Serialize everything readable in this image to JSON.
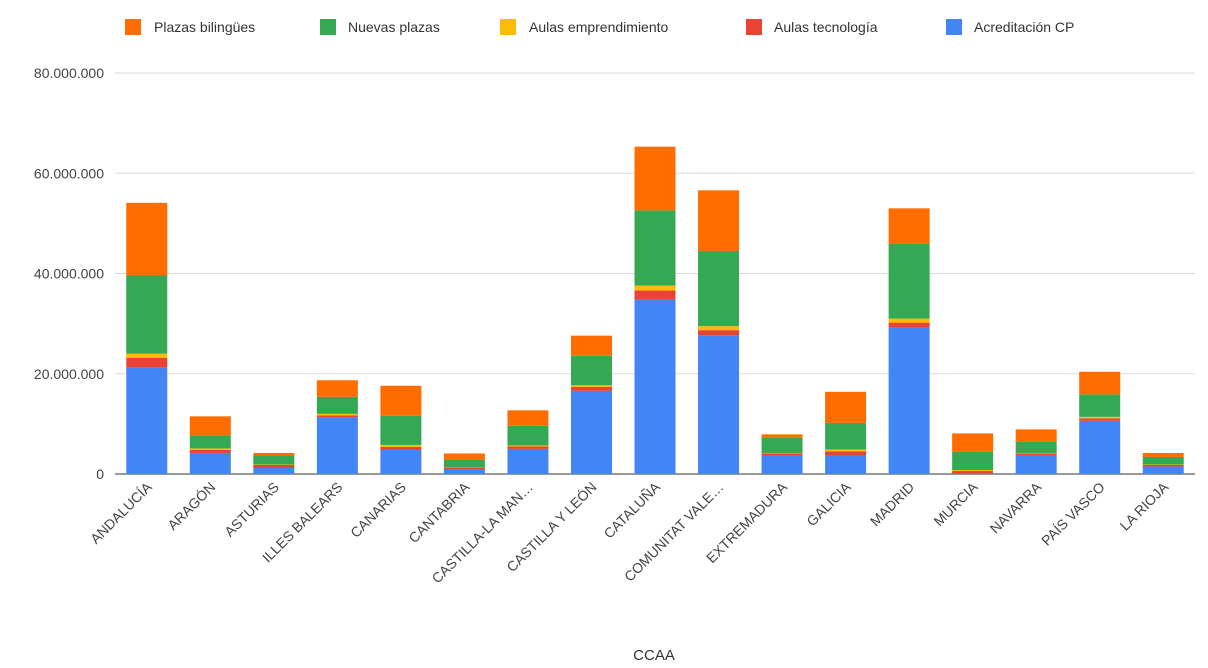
{
  "chart_data": {
    "type": "bar",
    "stacked": true,
    "xlabel": "CCAA",
    "ylabel": "",
    "ylim": [
      0,
      80000000
    ],
    "y_ticks": [
      0,
      20000000,
      40000000,
      60000000,
      80000000
    ],
    "y_tick_labels": [
      "0",
      "20.000.000",
      "40.000.000",
      "60.000.000",
      "80.000.000"
    ],
    "grid": true,
    "legend_position": "top",
    "categories": [
      "ANDALUCÍA",
      "ARAGÓN",
      "ASTURIAS",
      "ILLES BALEARS",
      "CANARIAS",
      "CANTABRIA",
      "CASTILLA-LA MAN…",
      "CASTILLA Y LEÓN",
      "CATALUÑA",
      "COMUNITAT VALE…",
      "EXTREMADURA",
      "GALICIA",
      "MADRID",
      "MURCIA",
      "NAVARRA",
      "PAÍS VASCO",
      "LA RIOJA"
    ],
    "legend_order": [
      "Plazas bilingües",
      "Nuevas plazas",
      "Aulas emprendimiento",
      "Aulas tecnología",
      "Acreditación CP"
    ],
    "series": [
      {
        "name": "Acreditación CP",
        "color": "#4285F4",
        "values": [
          21200000,
          4200000,
          1200000,
          11300000,
          4800000,
          1000000,
          5000000,
          16600000,
          34800000,
          27700000,
          3700000,
          3700000,
          29200000,
          200000,
          3800000,
          10600000,
          1500000
        ]
      },
      {
        "name": "Aulas tecnología",
        "color": "#EA4335",
        "values": [
          2000000,
          600000,
          600000,
          400000,
          600000,
          300000,
          500000,
          800000,
          1800000,
          1000000,
          400000,
          800000,
          1000000,
          400000,
          300000,
          500000,
          300000
        ]
      },
      {
        "name": "Aulas emprendimiento",
        "color": "#FBBC04",
        "values": [
          800000,
          300000,
          100000,
          300000,
          400000,
          100000,
          200000,
          300000,
          1000000,
          800000,
          100000,
          400000,
          800000,
          200000,
          100000,
          300000,
          100000
        ]
      },
      {
        "name": "Nuevas plazas",
        "color": "#34A853",
        "values": [
          15600000,
          2600000,
          1800000,
          3400000,
          5800000,
          1400000,
          3900000,
          5900000,
          15000000,
          15000000,
          3000000,
          5300000,
          14900000,
          3600000,
          2200000,
          4500000,
          1500000
        ]
      },
      {
        "name": "Plazas bilingües",
        "color": "#FF6D01",
        "values": [
          14500000,
          3800000,
          500000,
          3300000,
          6000000,
          1300000,
          3100000,
          4000000,
          12700000,
          12100000,
          700000,
          6200000,
          7100000,
          3700000,
          2500000,
          4500000,
          800000
        ]
      }
    ]
  }
}
